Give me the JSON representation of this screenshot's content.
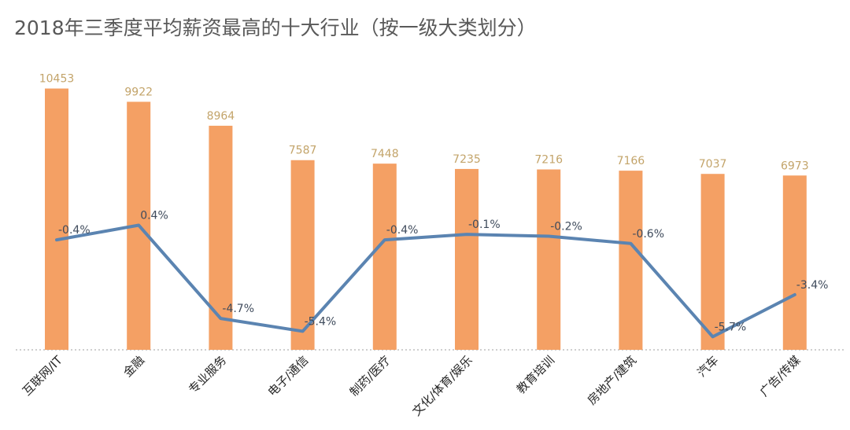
{
  "chart_data": {
    "type": "bar",
    "title": "2018年三季度平均薪资最高的十大行业（按一级大类划分）",
    "categories": [
      "互联网/IT",
      "金融",
      "专业服务",
      "电子/通信",
      "制药/医疗",
      "文化/体育/娱乐",
      "教育培训",
      "房地产/建筑",
      "汽车",
      "广告/传媒"
    ],
    "series": [
      {
        "type": "bar",
        "values": [
          10453,
          9922,
          8964,
          7587,
          7448,
          7235,
          7216,
          7166,
          7037,
          6973
        ],
        "labels": [
          "10453",
          "9922",
          "8964",
          "7587",
          "7448",
          "7235",
          "7216",
          "7166",
          "7037",
          "6973"
        ],
        "color": "#f4a064"
      },
      {
        "type": "line",
        "values": [
          -0.4,
          0.4,
          -4.7,
          -5.4,
          -0.4,
          -0.1,
          -0.2,
          -0.6,
          -5.7,
          -3.4
        ],
        "labels": [
          "-0.4%",
          "0.4%",
          "-4.7%",
          "-5.4%",
          "-0.4%",
          "-0.1%",
          "-0.2%",
          "-0.6%",
          "-5.7%",
          "-3.4%"
        ],
        "color": "#5b84b1"
      }
    ],
    "grid": false,
    "legend": "none"
  }
}
